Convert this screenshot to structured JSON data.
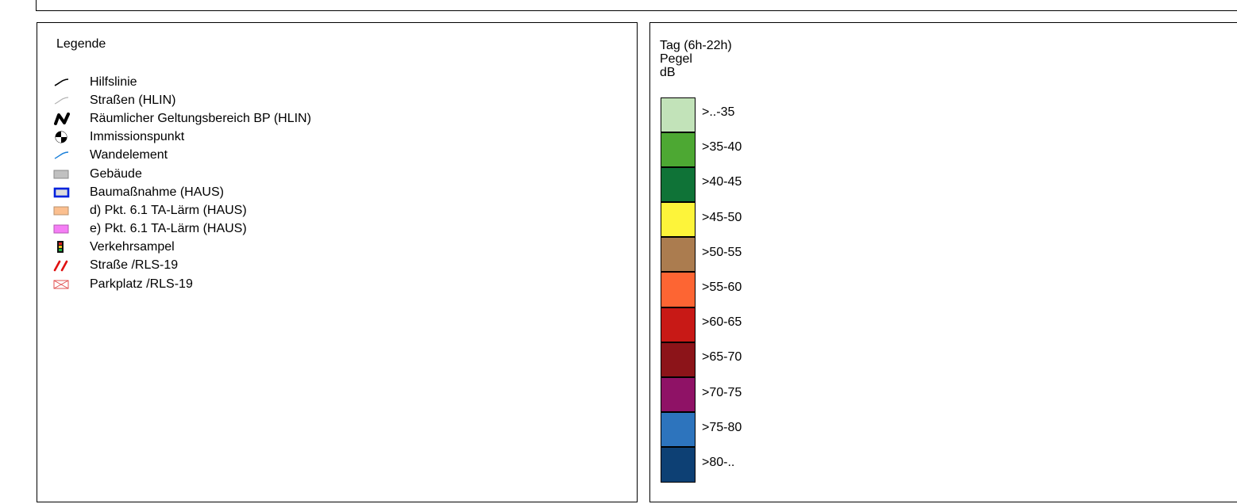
{
  "legend": {
    "title": "Legende",
    "items": [
      {
        "label": "Hilfslinie",
        "icon": "line-black-icon"
      },
      {
        "label": "Straßen (HLIN)",
        "icon": "line-gray-icon"
      },
      {
        "label": "Räumlicher Geltungsbereich BP (HLIN)",
        "icon": "boundary-zigzag-icon"
      },
      {
        "label": "Immissionspunkt",
        "icon": "immission-point-icon"
      },
      {
        "label": "Wandelement",
        "icon": "line-blue-icon"
      },
      {
        "label": "Gebäude",
        "icon": "building-gray-icon"
      },
      {
        "label": "Baumaßnahme (HAUS)",
        "icon": "building-blue-outline-icon"
      },
      {
        "label": "d) Pkt. 6.1 TA-Lärm (HAUS)",
        "icon": "building-orange-icon"
      },
      {
        "label": "e) Pkt. 6.1 TA-Lärm (HAUS)",
        "icon": "building-pink-icon"
      },
      {
        "label": "Verkehrsampel",
        "icon": "traffic-light-icon"
      },
      {
        "label": "Straße /RLS-19",
        "icon": "road-red-lines-icon"
      },
      {
        "label": "Parkplatz /RLS-19",
        "icon": "parking-crossbox-icon"
      }
    ]
  },
  "scale": {
    "header_lines": [
      "Tag (6h-22h)",
      "Pegel",
      "dB"
    ],
    "classes": [
      {
        "label": ">..-35",
        "color": "#c2e3b9"
      },
      {
        "label": ">35-40",
        "color": "#4da833"
      },
      {
        "label": ">40-45",
        "color": "#0f7337"
      },
      {
        "label": ">45-50",
        "color": "#fdf43a"
      },
      {
        "label": ">50-55",
        "color": "#ab7c4f"
      },
      {
        "label": ">55-60",
        "color": "#fd6533"
      },
      {
        "label": ">60-65",
        "color": "#c81916"
      },
      {
        "label": ">65-70",
        "color": "#8c1419"
      },
      {
        "label": ">70-75",
        "color": "#8f1266"
      },
      {
        "label": ">75-80",
        "color": "#2d74bd"
      },
      {
        "label": ">80-..",
        "color": "#0d4074"
      }
    ]
  }
}
